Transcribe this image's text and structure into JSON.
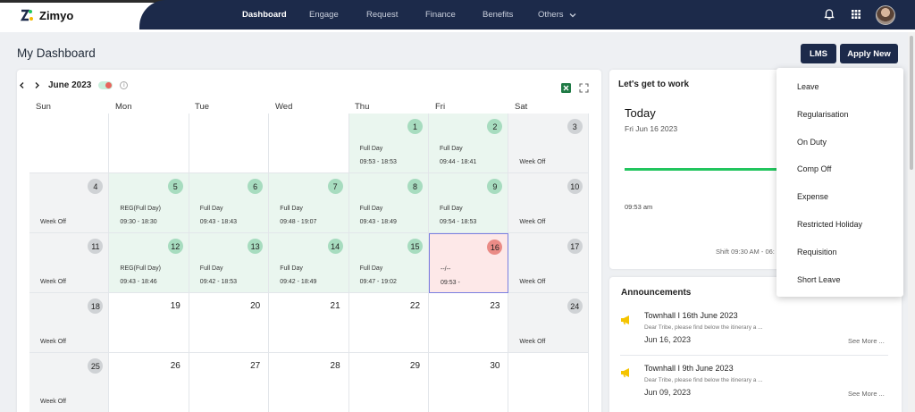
{
  "header": {
    "brand": "Zimyo",
    "nav": [
      {
        "label": "Dashboard",
        "active": true
      },
      {
        "label": "Engage"
      },
      {
        "label": "Request"
      },
      {
        "label": "Finance"
      },
      {
        "label": "Benefits"
      },
      {
        "label": "Others"
      }
    ],
    "icons": [
      "bell-icon",
      "apps-grid-icon",
      "avatar"
    ]
  },
  "page": {
    "title": "My Dashboard",
    "lms_label": "LMS",
    "apply_label": "Apply New"
  },
  "calendar": {
    "month": "June 2023",
    "weekdays": [
      "Sun",
      "Mon",
      "Tue",
      "Wed",
      "Thu",
      "Fri",
      "Sat"
    ],
    "weeks": [
      [
        {
          "day": "",
          "type": "empty"
        },
        {
          "day": "",
          "type": "empty"
        },
        {
          "day": "",
          "type": "empty"
        },
        {
          "day": "",
          "type": "empty"
        },
        {
          "day": "1",
          "type": "present",
          "label": "Full Day",
          "time": "09:53 - 18:53"
        },
        {
          "day": "2",
          "type": "present",
          "label": "Full Day",
          "time": "09:44 - 18:41"
        },
        {
          "day": "3",
          "type": "weekoff",
          "label": "Week Off"
        }
      ],
      [
        {
          "day": "4",
          "type": "weekoff",
          "label": "Week Off"
        },
        {
          "day": "5",
          "type": "present",
          "label": "REG(Full Day)",
          "time": "09:30 - 18:30"
        },
        {
          "day": "6",
          "type": "present",
          "label": "Full Day",
          "time": "09:43 - 18:43"
        },
        {
          "day": "7",
          "type": "present",
          "label": "Full Day",
          "time": "09:48 - 19:07"
        },
        {
          "day": "8",
          "type": "present",
          "label": "Full Day",
          "time": "09:43 - 18:49"
        },
        {
          "day": "9",
          "type": "present",
          "label": "Full Day",
          "time": "09:54 - 18:53"
        },
        {
          "day": "10",
          "type": "weekoff",
          "label": "Week Off"
        }
      ],
      [
        {
          "day": "11",
          "type": "weekoff",
          "label": "Week Off"
        },
        {
          "day": "12",
          "type": "present",
          "label": "REG(Full Day)",
          "time": "09:43 - 18:46"
        },
        {
          "day": "13",
          "type": "present",
          "label": "Full Day",
          "time": "09:42 - 18:53"
        },
        {
          "day": "14",
          "type": "present",
          "label": "Full Day",
          "time": "09:42 - 18:49"
        },
        {
          "day": "15",
          "type": "present",
          "label": "Full Day",
          "time": "09:47 - 19:02"
        },
        {
          "day": "16",
          "type": "today",
          "label": "--/--",
          "time": "09:53 -"
        },
        {
          "day": "17",
          "type": "weekoff",
          "label": "Week Off"
        }
      ],
      [
        {
          "day": "18",
          "type": "weekoff",
          "label": "Week Off"
        },
        {
          "day": "19",
          "type": "plain"
        },
        {
          "day": "20",
          "type": "plain"
        },
        {
          "day": "21",
          "type": "plain"
        },
        {
          "day": "22",
          "type": "plain"
        },
        {
          "day": "23",
          "type": "plain"
        },
        {
          "day": "24",
          "type": "weekoff",
          "label": "Week Off"
        }
      ],
      [
        {
          "day": "25",
          "type": "weekoff",
          "label": "Week Off"
        },
        {
          "day": "26",
          "type": "plain"
        },
        {
          "day": "27",
          "type": "plain"
        },
        {
          "day": "28",
          "type": "plain"
        },
        {
          "day": "29",
          "type": "plain"
        },
        {
          "day": "30",
          "type": "plain"
        },
        {
          "day": "",
          "type": "plain"
        }
      ]
    ]
  },
  "work": {
    "title": "Let's get to work",
    "today": "Today",
    "date": "Fri Jun 16 2023",
    "checkin": "09:53 am",
    "shift": "Shift 09:30 AM - 06:"
  },
  "announcements": {
    "title": "Announcements",
    "items": [
      {
        "title": "Townhall I 16th June 2023",
        "body": "Dear Tribe, please find below the itinerary a ...",
        "date": "Jun 16, 2023",
        "more": "See More ..."
      },
      {
        "title": "Townhall I 9th June 2023",
        "body": "Dear Tribe, please find below the itinerary a ...",
        "date": "Jun 09, 2023",
        "more": "See More ..."
      }
    ]
  },
  "dropdown": {
    "items": [
      "Leave",
      "Regularisation",
      "On Duty",
      "Comp Off",
      "Expense",
      "Restricted Holiday",
      "Requisition",
      "Short Leave"
    ]
  },
  "colors": {
    "nav_bg": "#1c2a4a",
    "present": "#eaf6ef",
    "weekoff": "#f2f3f4",
    "today": "#fde8e8",
    "progress": "#22c55e"
  }
}
